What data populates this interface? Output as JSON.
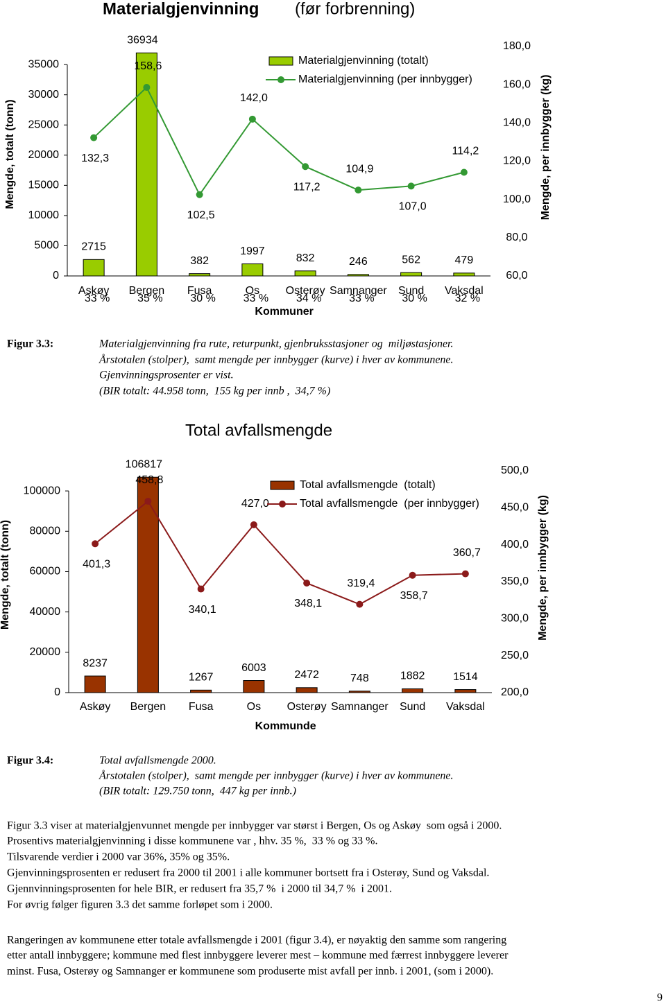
{
  "chart_data": [
    {
      "type": "bar",
      "title": "Materialgjenvinning",
      "subtitle": "(før forbrenning)",
      "categories": [
        "Askøy",
        "Bergen",
        "Fusa",
        "Os",
        "Osterøy",
        "Samnanger",
        "Sund",
        "Vaksdal"
      ],
      "category_notes": [
        "33 %",
        "35 %",
        "30 %",
        "33 %",
        "34 %",
        "33 %",
        "30 %",
        "32 %"
      ],
      "x_label": "Kommuner",
      "y_label": "Mengde, totalt (tonn)",
      "y2_label": "Mengde, per innbygger (kg)",
      "series": [
        {
          "name": "Materialgjenvinning (totalt)",
          "type": "bar",
          "color": "#99cc00",
          "values": [
            2715,
            36934,
            382,
            1997,
            832,
            246,
            562,
            479
          ]
        },
        {
          "name": "Materialgjenvinning (per innbygger)",
          "type": "line",
          "axis": "y2",
          "color": "#339933",
          "values": [
            132.3,
            158.6,
            102.5,
            142.0,
            117.2,
            104.9,
            107.0,
            114.2
          ],
          "value_labels": [
            "132,3",
            "158,6",
            "102,5",
            "142,0",
            "117,2",
            "104,9",
            "107,0",
            "114,2"
          ]
        }
      ],
      "ylim": [
        0,
        38000
      ],
      "yticks": [
        0,
        5000,
        10000,
        15000,
        20000,
        25000,
        30000,
        35000
      ],
      "y2lim": [
        60,
        180
      ],
      "y2ticks": [
        {
          "value": 60,
          "label": "60,0"
        },
        {
          "value": 80,
          "label": "80,0"
        },
        {
          "value": 100,
          "label": "100,0"
        },
        {
          "value": 120,
          "label": "120,0"
        },
        {
          "value": 140,
          "label": "140,0"
        },
        {
          "value": 160,
          "label": "160,0"
        },
        {
          "value": 180,
          "label": "180,0"
        }
      ],
      "legend": "top-right"
    },
    {
      "type": "bar",
      "title": "Total avfallsmengde",
      "categories": [
        "Askøy",
        "Bergen",
        "Fusa",
        "Os",
        "Osterøy",
        "Samnanger",
        "Sund",
        "Vaksdal"
      ],
      "x_label": "Kommunde",
      "y_label": "Mengde, totalt (tonn)",
      "y2_label": "Mengde, per innbygger (kg)",
      "series": [
        {
          "name": "Total avfallsmengde  (totalt)",
          "type": "bar",
          "color": "#993300",
          "values": [
            8237,
            106817,
            1267,
            6003,
            2472,
            748,
            1882,
            1514
          ]
        },
        {
          "name": "Total avfallsmengde  (per innbygger)",
          "type": "line",
          "axis": "y2",
          "color": "#8b1a1a",
          "values": [
            401.3,
            458.8,
            340.1,
            427.0,
            348.1,
            319.4,
            358.7,
            360.7
          ],
          "value_labels": [
            "401,3",
            "458,8",
            "340,1",
            "427,0",
            "348,1",
            "319,4",
            "358,7",
            "360,7"
          ]
        }
      ],
      "ylim": [
        0,
        110000
      ],
      "yticks": [
        0,
        20000,
        40000,
        60000,
        80000,
        100000
      ],
      "y2lim": [
        200,
        500
      ],
      "y2ticks": [
        {
          "value": 200,
          "label": "200,0"
        },
        {
          "value": 250,
          "label": "250,0"
        },
        {
          "value": 300,
          "label": "300,0"
        },
        {
          "value": 350,
          "label": "350,0"
        },
        {
          "value": 400,
          "label": "400,0"
        },
        {
          "value": 450,
          "label": "450,0"
        },
        {
          "value": 500,
          "label": "500,0"
        }
      ],
      "legend": "top-right"
    }
  ],
  "figures": [
    {
      "label": "Figur 3.3:",
      "caption": [
        "Materialgjenvinning fra rute, returpunkt, gjenbruksstasjoner og  miljøstasjoner.",
        "Årstotalen (stolper),  samt mengde per innbygger (kurve) i hver av kommunene.",
        "Gjenvinningsprosenter er vist.",
        "(BIR totalt: 44.958 tonn,  155 kg per innb ,  34,7 %)"
      ]
    },
    {
      "label": "Figur 3.4:",
      "caption": [
        "Total avfallsmengde 2000.",
        "Årstotalen (stolper),  samt mengde per innbygger (kurve) i hver av kommunene.",
        "(BIR totalt: 129.750 tonn,  447 kg per innb.)"
      ]
    }
  ],
  "body": [
    [
      "Figur 3.3 viser at materialgjenvunnet mengde per innbygger var størst i Bergen, Os og Askøy  som også i 2000.",
      "Prosentivs materialgjenvinning i disse kommunene var , hhv. 35 %,  33 % og 33 %.",
      "Tilsvarende verdier i 2000 var 36%, 35% og 35%.",
      "Gjenvinningsprosenten er redusert fra 2000 til 2001 i alle kommuner bortsett fra i Osterøy, Sund og Vaksdal.",
      "Gjennvinningsprosenten for hele BIR, er redusert fra 35,7 %  i 2000 til 34,7 %  i 2001.",
      "For øvrig følger figuren 3.3 det samme forløpet som i 2000."
    ],
    [
      "Rangeringen av kommunene etter totale avfallsmengde i 2001 (figur 3.4), er nøyaktig den samme som rangering",
      "etter antall innbyggere; kommune med flest innbyggere leverer mest – kommune med færrest innbyggere leverer",
      "minst. Fusa, Osterøy og Samnanger er kommunene som produserte mist avfall per innb. i 2001, (som i 2000)."
    ]
  ],
  "page_number": "9"
}
